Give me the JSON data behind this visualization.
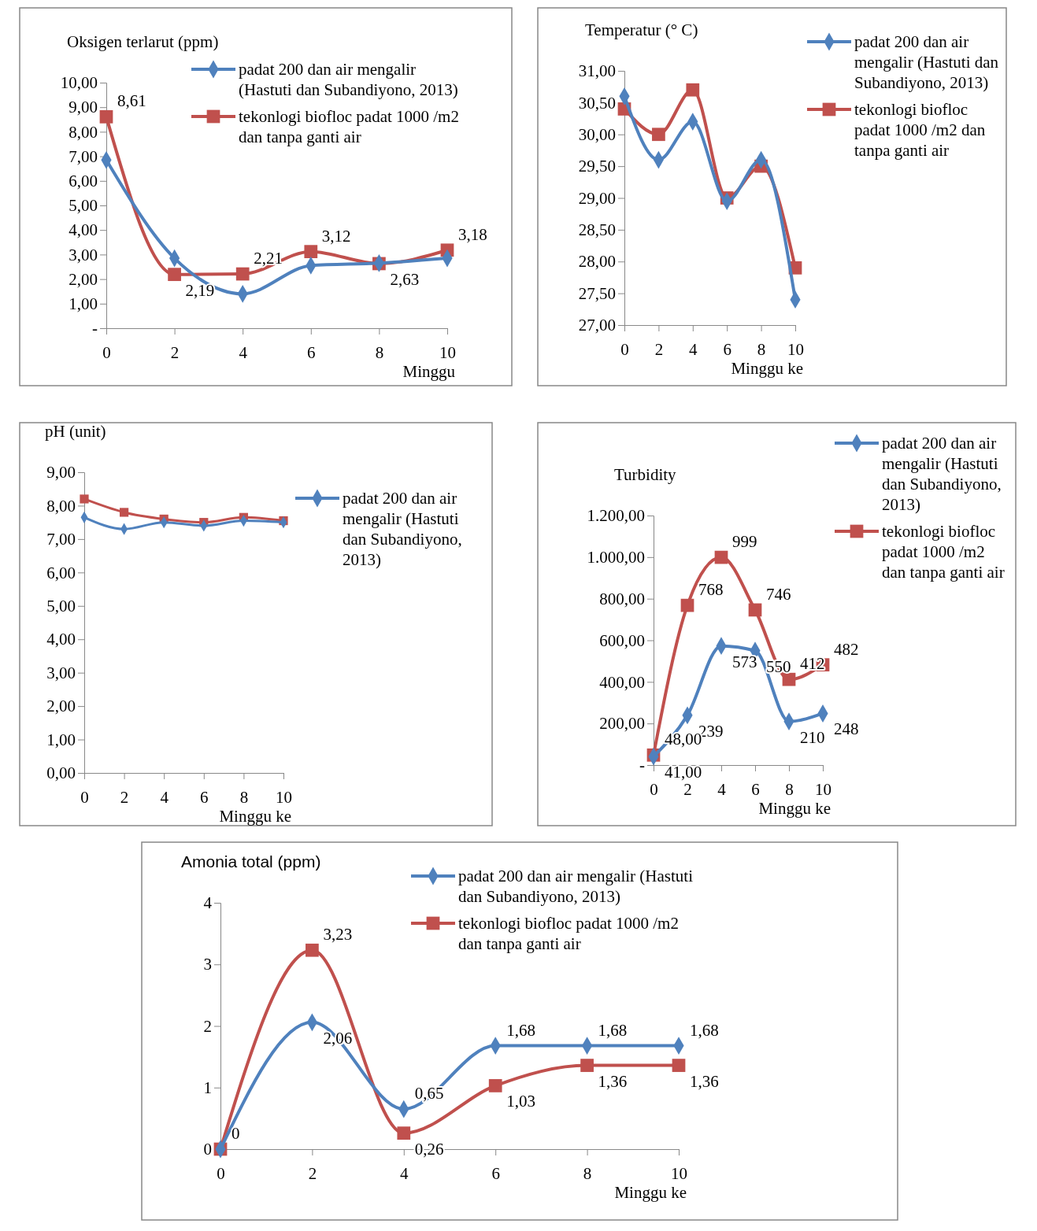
{
  "chart_data": [
    {
      "type": "line",
      "title": "Oksigen terlarut (ppm)",
      "xlabel": "Minggu",
      "x": [
        0,
        2,
        4,
        6,
        8,
        10
      ],
      "xlim": [
        0,
        10
      ],
      "xticks": [
        0,
        2,
        4,
        6,
        8,
        10
      ],
      "ylim": [
        0,
        10
      ],
      "yticks": [
        {
          "value": 0,
          "label": "-"
        },
        {
          "value": 1,
          "label": "1,00"
        },
        {
          "value": 2,
          "label": "2,00"
        },
        {
          "value": 3,
          "label": "3,00"
        },
        {
          "value": 4,
          "label": "4,00"
        },
        {
          "value": 5,
          "label": "5,00"
        },
        {
          "value": 6,
          "label": "6,00"
        },
        {
          "value": 7,
          "label": "7,00"
        },
        {
          "value": 8,
          "label": "8,00"
        },
        {
          "value": 9,
          "label": "9,00"
        },
        {
          "value": 10,
          "label": "10,00"
        }
      ],
      "legend": "top right",
      "series": [
        {
          "name": "padat 200 dan air mengalir (Hastuti dan Subandiyono, 2013)",
          "color": "#4f81bd",
          "marker": "diamond",
          "values": [
            6.85,
            2.85,
            1.4,
            2.55,
            2.65,
            2.85
          ]
        },
        {
          "name": "tekonlogi biofloc padat 1000 /m2 dan tanpa ganti air",
          "color": "#c0504d",
          "marker": "square",
          "values": [
            8.61,
            2.19,
            2.21,
            3.12,
            2.63,
            3.18
          ],
          "value_labels": [
            "8,61",
            "2,19",
            "2,21",
            "3,12",
            "2,63",
            "3,18"
          ]
        }
      ]
    },
    {
      "type": "line",
      "title": "Temperatur (° C)",
      "xlabel": "Minggu ke",
      "x": [
        0,
        2,
        4,
        6,
        8,
        10
      ],
      "xlim": [
        0,
        10
      ],
      "xticks": [
        0,
        2,
        4,
        6,
        8,
        10
      ],
      "ylim": [
        27,
        31
      ],
      "yticks": [
        {
          "value": 27,
          "label": "27,00"
        },
        {
          "value": 27.5,
          "label": "27,50"
        },
        {
          "value": 28,
          "label": "28,00"
        },
        {
          "value": 28.5,
          "label": "28,50"
        },
        {
          "value": 29,
          "label": "29,00"
        },
        {
          "value": 29.5,
          "label": "29,50"
        },
        {
          "value": 30,
          "label": "30,00"
        },
        {
          "value": 30.5,
          "label": "30,50"
        },
        {
          "value": 31,
          "label": "31,00"
        }
      ],
      "legend": "right",
      "series": [
        {
          "name": "padat 200 dan air mengalir (Hastuti dan Subandiyono, 2013)",
          "color": "#4f81bd",
          "marker": "diamond",
          "values": [
            30.6,
            29.6,
            30.2,
            28.95,
            29.6,
            27.4
          ]
        },
        {
          "name": "tekonlogi biofloc padat 1000 /m2 dan tanpa ganti air",
          "color": "#c0504d",
          "marker": "square",
          "values": [
            30.4,
            30.0,
            30.7,
            29.0,
            29.5,
            27.9
          ]
        }
      ]
    },
    {
      "type": "line",
      "title": "pH (unit)",
      "xlabel": "Minggu ke",
      "x": [
        0,
        2,
        4,
        6,
        8,
        10
      ],
      "xlim": [
        0,
        10
      ],
      "xticks": [
        0,
        2,
        4,
        6,
        8,
        10
      ],
      "ylim": [
        0,
        9
      ],
      "yticks": [
        {
          "value": 0,
          "label": "0,00"
        },
        {
          "value": 1,
          "label": "1,00"
        },
        {
          "value": 2,
          "label": "2,00"
        },
        {
          "value": 3,
          "label": "3,00"
        },
        {
          "value": 4,
          "label": "4,00"
        },
        {
          "value": 5,
          "label": "5,00"
        },
        {
          "value": 6,
          "label": "6,00"
        },
        {
          "value": 7,
          "label": "7,00"
        },
        {
          "value": 8,
          "label": "8,00"
        },
        {
          "value": 9,
          "label": "9,00"
        }
      ],
      "legend": "right",
      "series": [
        {
          "name": "padat 200 dan air mengalir (Hastuti dan Subandiyono, 2013)",
          "color": "#4f81bd",
          "marker": "diamond",
          "values": [
            7.65,
            7.3,
            7.5,
            7.4,
            7.55,
            7.5
          ]
        },
        {
          "color": "#c0504d",
          "marker": "square",
          "values": [
            8.2,
            7.8,
            7.6,
            7.5,
            7.65,
            7.55
          ]
        }
      ]
    },
    {
      "type": "line",
      "title": "Turbidity",
      "xlabel": "Minggu ke",
      "x": [
        0,
        2,
        4,
        6,
        8,
        10
      ],
      "xlim": [
        0,
        10
      ],
      "xticks": [
        0,
        2,
        4,
        6,
        8,
        10
      ],
      "ylim": [
        0,
        1200
      ],
      "yticks": [
        {
          "value": 0,
          "label": "-"
        },
        {
          "value": 200,
          "label": "200,00"
        },
        {
          "value": 400,
          "label": "400,00"
        },
        {
          "value": 600,
          "label": "600,00"
        },
        {
          "value": 800,
          "label": "800,00"
        },
        {
          "value": 1000,
          "label": "1.000,00"
        },
        {
          "value": 1200,
          "label": "1.200,00"
        }
      ],
      "legend": "right",
      "series": [
        {
          "name": "padat 200 dan air mengalir (Hastuti dan Subandiyono, 2013)",
          "color": "#4f81bd",
          "marker": "diamond",
          "values": [
            41,
            239,
            573,
            550,
            210,
            248
          ],
          "value_labels": [
            "41,00",
            "239",
            "573",
            "550",
            "210",
            "248"
          ]
        },
        {
          "name": "tekonlogi biofloc padat 1000 /m2 dan tanpa ganti air",
          "color": "#c0504d",
          "marker": "square",
          "values": [
            48,
            768,
            999,
            746,
            412,
            482
          ],
          "value_labels": [
            "48,00",
            "768",
            "999",
            "746",
            "412",
            "482"
          ]
        }
      ]
    },
    {
      "type": "line",
      "title": "Amonia total (ppm)",
      "xlabel": "Minggu ke",
      "x": [
        0,
        2,
        4,
        6,
        8,
        10
      ],
      "xlim": [
        0,
        10
      ],
      "xticks": [
        0,
        2,
        4,
        6,
        8,
        10
      ],
      "ylim": [
        0,
        4
      ],
      "yticks": [
        0,
        1,
        2,
        3,
        4
      ],
      "legend": "top right",
      "series": [
        {
          "name": "padat 200 dan air mengalir (Hastuti dan Subandiyono, 2013)",
          "color": "#4f81bd",
          "marker": "diamond",
          "values": [
            0,
            2.06,
            0.65,
            1.68,
            1.68,
            1.68
          ],
          "value_labels": [
            "0",
            "2,06",
            "0,65",
            "1,68",
            "1,68",
            "1,68"
          ]
        },
        {
          "name": "tekonlogi biofloc padat 1000 /m2 dan tanpa ganti air",
          "color": "#c0504d",
          "marker": "square",
          "values": [
            0,
            3.23,
            0.26,
            1.03,
            1.36,
            1.36
          ],
          "value_labels": [
            null,
            "3,23",
            "0,26",
            "1,03",
            "1,36",
            "1,36"
          ]
        }
      ]
    }
  ]
}
